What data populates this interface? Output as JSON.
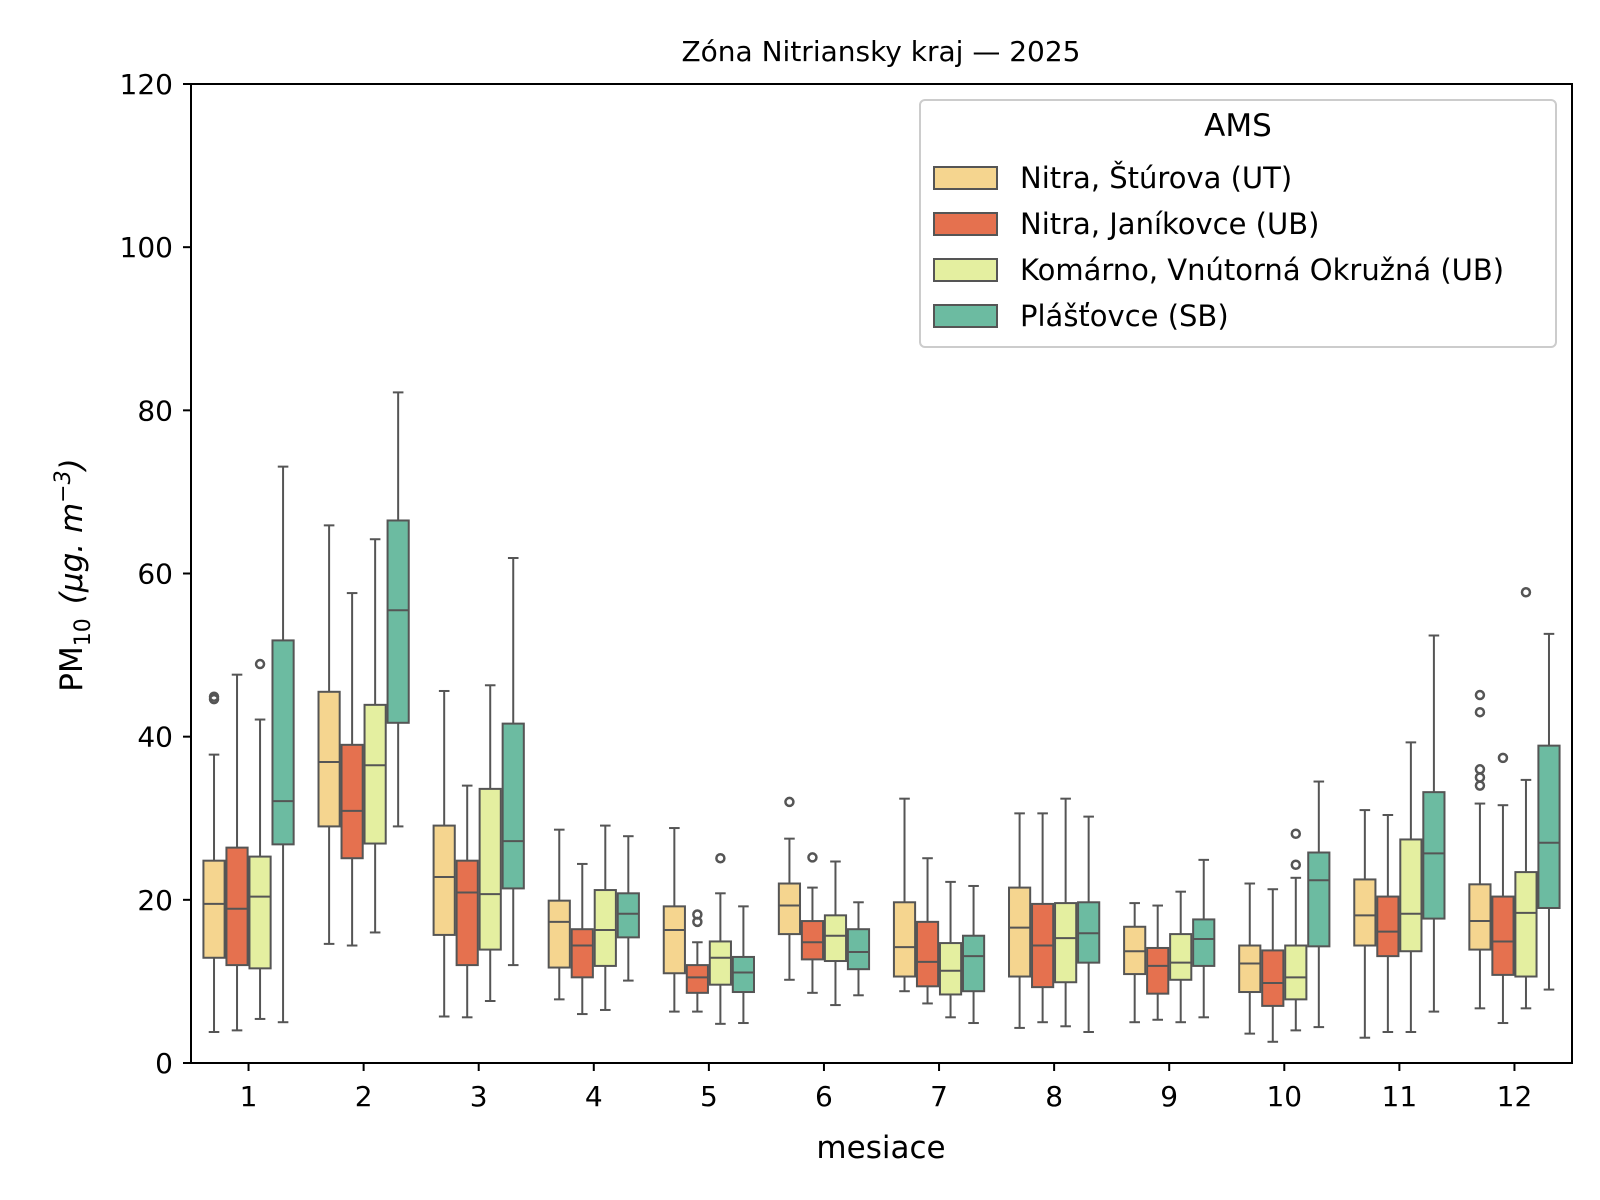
{
  "chart_data": {
    "type": "boxplot",
    "title": "Zóna Nitriansky kraj —  2025",
    "xlabel": "mesiace",
    "ylabel_main": "PM",
    "ylabel_sub": "10",
    "ylabel_unit_open": "(μg. m",
    "ylabel_unit_exp": "−3",
    "ylabel_unit_close": ")",
    "ylim": [
      0,
      120
    ],
    "yticks": [
      0,
      20,
      40,
      60,
      80,
      100,
      120
    ],
    "categories": [
      "1",
      "2",
      "3",
      "4",
      "5",
      "6",
      "7",
      "8",
      "9",
      "10",
      "11",
      "12"
    ],
    "legend": {
      "title": "AMS",
      "placement": "top-right"
    },
    "series": [
      {
        "name": "Nitra, Štúrova (UT)",
        "color": "#f5d58f",
        "boxes": [
          {
            "whislo": 3.8,
            "q1": 12.9,
            "med": 19.5,
            "q3": 24.8,
            "whishi": 37.8,
            "fliers": [
              44.6,
              44.9
            ]
          },
          {
            "whislo": 14.6,
            "q1": 29.0,
            "med": 36.9,
            "q3": 45.5,
            "whishi": 65.9,
            "fliers": []
          },
          {
            "whislo": 5.7,
            "q1": 15.7,
            "med": 22.8,
            "q3": 29.1,
            "whishi": 45.6,
            "fliers": []
          },
          {
            "whislo": 7.8,
            "q1": 11.7,
            "med": 17.3,
            "q3": 19.9,
            "whishi": 28.6,
            "fliers": []
          },
          {
            "whislo": 6.3,
            "q1": 11.0,
            "med": 16.3,
            "q3": 19.2,
            "whishi": 28.8,
            "fliers": []
          },
          {
            "whislo": 10.2,
            "q1": 15.8,
            "med": 19.3,
            "q3": 22.0,
            "whishi": 27.5,
            "fliers": [
              32.0
            ]
          },
          {
            "whislo": 8.8,
            "q1": 10.6,
            "med": 14.2,
            "q3": 19.7,
            "whishi": 32.4,
            "fliers": []
          },
          {
            "whislo": 4.3,
            "q1": 10.6,
            "med": 16.6,
            "q3": 21.5,
            "whishi": 30.6,
            "fliers": []
          },
          {
            "whislo": 5.0,
            "q1": 10.9,
            "med": 13.7,
            "q3": 16.7,
            "whishi": 19.6,
            "fliers": []
          },
          {
            "whislo": 3.6,
            "q1": 8.7,
            "med": 12.2,
            "q3": 14.4,
            "whishi": 22.0,
            "fliers": []
          },
          {
            "whislo": 3.1,
            "q1": 14.4,
            "med": 18.1,
            "q3": 22.5,
            "whishi": 31.0,
            "fliers": []
          },
          {
            "whislo": 6.7,
            "q1": 13.9,
            "med": 17.4,
            "q3": 21.9,
            "whishi": 31.8,
            "fliers": [
              34.0,
              35.0,
              36.0,
              43.0,
              45.1
            ]
          }
        ]
      },
      {
        "name": "Nitra, Janíkovce (UB)",
        "color": "#e5714f",
        "boxes": [
          {
            "whislo": 4.0,
            "q1": 12.0,
            "med": 18.9,
            "q3": 26.4,
            "whishi": 47.6,
            "fliers": []
          },
          {
            "whislo": 14.4,
            "q1": 25.1,
            "med": 30.9,
            "q3": 39.0,
            "whishi": 57.6,
            "fliers": []
          },
          {
            "whislo": 5.6,
            "q1": 12.0,
            "med": 20.9,
            "q3": 24.8,
            "whishi": 34.0,
            "fliers": []
          },
          {
            "whislo": 6.0,
            "q1": 10.5,
            "med": 14.4,
            "q3": 16.4,
            "whishi": 24.4,
            "fliers": []
          },
          {
            "whislo": 6.3,
            "q1": 8.6,
            "med": 10.5,
            "q3": 12.0,
            "whishi": 14.8,
            "fliers": [
              17.3,
              18.2
            ]
          },
          {
            "whislo": 8.6,
            "q1": 12.7,
            "med": 14.8,
            "q3": 17.4,
            "whishi": 21.5,
            "fliers": [
              25.2
            ]
          },
          {
            "whislo": 7.3,
            "q1": 9.4,
            "med": 12.4,
            "q3": 17.3,
            "whishi": 25.1,
            "fliers": []
          },
          {
            "whislo": 5.0,
            "q1": 9.3,
            "med": 14.4,
            "q3": 19.5,
            "whishi": 30.6,
            "fliers": []
          },
          {
            "whislo": 5.3,
            "q1": 8.5,
            "med": 11.9,
            "q3": 14.1,
            "whishi": 19.3,
            "fliers": []
          },
          {
            "whislo": 2.6,
            "q1": 7.0,
            "med": 9.8,
            "q3": 13.8,
            "whishi": 21.3,
            "fliers": []
          },
          {
            "whislo": 3.8,
            "q1": 13.1,
            "med": 16.1,
            "q3": 20.4,
            "whishi": 30.4,
            "fliers": []
          },
          {
            "whislo": 4.9,
            "q1": 10.8,
            "med": 14.9,
            "q3": 20.4,
            "whishi": 31.6,
            "fliers": [
              37.4
            ]
          }
        ]
      },
      {
        "name": "Komárno, Vnútorná Okružná (UB)",
        "color": "#e4efa0",
        "boxes": [
          {
            "whislo": 5.4,
            "q1": 11.6,
            "med": 20.4,
            "q3": 25.3,
            "whishi": 42.1,
            "fliers": [
              48.9
            ]
          },
          {
            "whislo": 16.0,
            "q1": 26.9,
            "med": 36.5,
            "q3": 43.9,
            "whishi": 64.2,
            "fliers": []
          },
          {
            "whislo": 7.6,
            "q1": 13.9,
            "med": 20.7,
            "q3": 33.6,
            "whishi": 46.3,
            "fliers": []
          },
          {
            "whislo": 6.5,
            "q1": 11.9,
            "med": 16.3,
            "q3": 21.2,
            "whishi": 29.1,
            "fliers": []
          },
          {
            "whislo": 4.8,
            "q1": 9.6,
            "med": 12.9,
            "q3": 14.9,
            "whishi": 20.8,
            "fliers": [
              25.1
            ]
          },
          {
            "whislo": 7.1,
            "q1": 12.5,
            "med": 15.6,
            "q3": 18.1,
            "whishi": 24.7,
            "fliers": []
          },
          {
            "whislo": 5.6,
            "q1": 8.4,
            "med": 11.3,
            "q3": 14.7,
            "whishi": 22.2,
            "fliers": []
          },
          {
            "whislo": 4.5,
            "q1": 9.9,
            "med": 15.3,
            "q3": 19.6,
            "whishi": 32.4,
            "fliers": []
          },
          {
            "whislo": 5.0,
            "q1": 10.2,
            "med": 12.3,
            "q3": 15.8,
            "whishi": 21.0,
            "fliers": []
          },
          {
            "whislo": 4.0,
            "q1": 7.8,
            "med": 10.5,
            "q3": 14.4,
            "whishi": 22.7,
            "fliers": [
              24.3,
              28.1
            ]
          },
          {
            "whislo": 3.8,
            "q1": 13.7,
            "med": 18.3,
            "q3": 27.4,
            "whishi": 39.3,
            "fliers": []
          },
          {
            "whislo": 6.7,
            "q1": 10.6,
            "med": 18.4,
            "q3": 23.4,
            "whishi": 34.7,
            "fliers": [
              57.7
            ]
          }
        ]
      },
      {
        "name": "Plášťovce (SB)",
        "color": "#6cbba1",
        "boxes": [
          {
            "whislo": 5.0,
            "q1": 26.8,
            "med": 32.1,
            "q3": 51.8,
            "whishi": 73.1,
            "fliers": []
          },
          {
            "whislo": 29.0,
            "q1": 41.7,
            "med": 55.5,
            "q3": 66.5,
            "whishi": 82.2,
            "fliers": []
          },
          {
            "whislo": 12.0,
            "q1": 21.4,
            "med": 27.2,
            "q3": 41.6,
            "whishi": 61.9,
            "fliers": []
          },
          {
            "whislo": 10.1,
            "q1": 15.4,
            "med": 18.3,
            "q3": 20.8,
            "whishi": 27.8,
            "fliers": []
          },
          {
            "whislo": 4.9,
            "q1": 8.7,
            "med": 11.1,
            "q3": 13.0,
            "whishi": 19.2,
            "fliers": []
          },
          {
            "whislo": 8.3,
            "q1": 11.5,
            "med": 13.6,
            "q3": 16.4,
            "whishi": 19.7,
            "fliers": []
          },
          {
            "whislo": 4.9,
            "q1": 8.8,
            "med": 13.1,
            "q3": 15.6,
            "whishi": 21.7,
            "fliers": []
          },
          {
            "whislo": 3.8,
            "q1": 12.3,
            "med": 15.9,
            "q3": 19.7,
            "whishi": 30.2,
            "fliers": []
          },
          {
            "whislo": 5.6,
            "q1": 11.9,
            "med": 15.2,
            "q3": 17.6,
            "whishi": 24.9,
            "fliers": []
          },
          {
            "whislo": 4.4,
            "q1": 14.3,
            "med": 22.4,
            "q3": 25.8,
            "whishi": 34.5,
            "fliers": []
          },
          {
            "whislo": 6.3,
            "q1": 17.7,
            "med": 25.7,
            "q3": 33.2,
            "whishi": 52.4,
            "fliers": []
          },
          {
            "whislo": 9.0,
            "q1": 19.0,
            "med": 27.0,
            "q3": 38.9,
            "whishi": 52.6,
            "fliers": []
          }
        ]
      }
    ]
  }
}
